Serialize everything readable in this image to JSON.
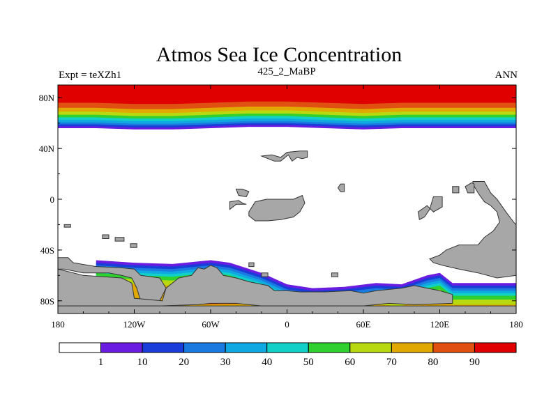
{
  "header": {
    "title": "Atmos Sea Ice Concentration",
    "left": "Expt = teXZh1",
    "center": "425_2_MaBP",
    "right": "ANN"
  },
  "colors": {
    "land": "#a7a7a7",
    "levels": [
      "#ffffff",
      "#6a1ce0",
      "#1a3cd8",
      "#1a7ae0",
      "#10a8e0",
      "#10d0c8",
      "#30d030",
      "#b8d810",
      "#e0a800",
      "#e05010",
      "#e00000"
    ]
  },
  "chart_data": {
    "type": "heatmap",
    "title": "Atmos Sea Ice Concentration",
    "x_ticks": [
      "180",
      "120W",
      "60W",
      "0",
      "60E",
      "120E",
      "180"
    ],
    "y_ticks": [
      "80N",
      "40N",
      "0",
      "40S",
      "80S"
    ],
    "x_tick_values": [
      -180,
      -120,
      -60,
      0,
      60,
      120,
      180
    ],
    "y_tick_values": [
      80,
      40,
      0,
      -40,
      -80
    ],
    "xlim": [
      -180,
      180
    ],
    "ylim": [
      -90,
      90
    ],
    "colorbar": {
      "levels": [
        1,
        10,
        20,
        30,
        40,
        50,
        60,
        70,
        80,
        90
      ],
      "labels": [
        "1",
        "10",
        "20",
        "30",
        "40",
        "50",
        "60",
        "70",
        "80",
        "90"
      ]
    },
    "arctic_bands_lat": [
      88,
      80,
      75,
      72,
      70,
      68,
      66,
      64,
      62,
      60,
      58
    ],
    "arctic_edge_lat": [
      56,
      56,
      55,
      55,
      56,
      57,
      57,
      56,
      55,
      56,
      56,
      56,
      56
    ]
  }
}
